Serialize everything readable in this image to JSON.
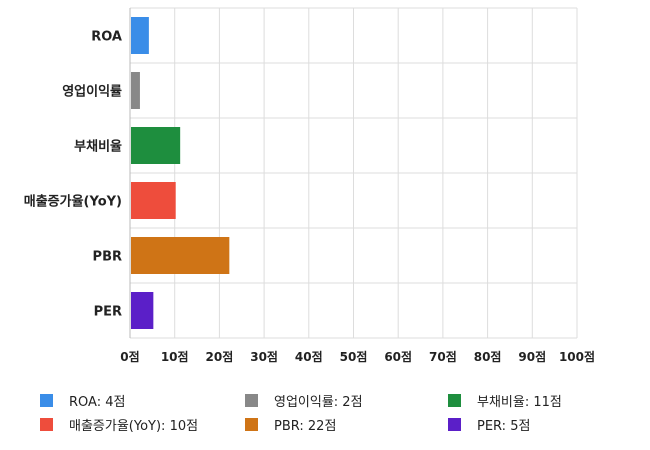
{
  "chart_data": {
    "type": "bar",
    "orientation": "horizontal",
    "categories": [
      "ROA",
      "영업이익률",
      "부채비율",
      "매출증가율(YoY)",
      "PBR",
      "PER"
    ],
    "values": [
      4,
      2,
      11,
      10,
      22,
      5
    ],
    "colors": [
      "#3a8de8",
      "#888888",
      "#1e8e3e",
      "#ee4d3c",
      "#cf7416",
      "#5b1fc8"
    ],
    "xlim": [
      0,
      100
    ],
    "x_ticks": [
      "0점",
      "10점",
      "20점",
      "30점",
      "40점",
      "50점",
      "60점",
      "70점",
      "80점",
      "90점",
      "100점"
    ],
    "grid": true,
    "legend_position": "bottom",
    "legend": [
      {
        "label": "ROA: 4점",
        "color": "#3a8de8"
      },
      {
        "label": "영업이익률: 2점",
        "color": "#888888"
      },
      {
        "label": "부채비율: 11점",
        "color": "#1e8e3e"
      },
      {
        "label": "매출증가율(YoY): 10점",
        "color": "#ee4d3c"
      },
      {
        "label": "PBR: 22점",
        "color": "#cf7416"
      },
      {
        "label": "PER: 5점",
        "color": "#5b1fc8"
      }
    ]
  }
}
